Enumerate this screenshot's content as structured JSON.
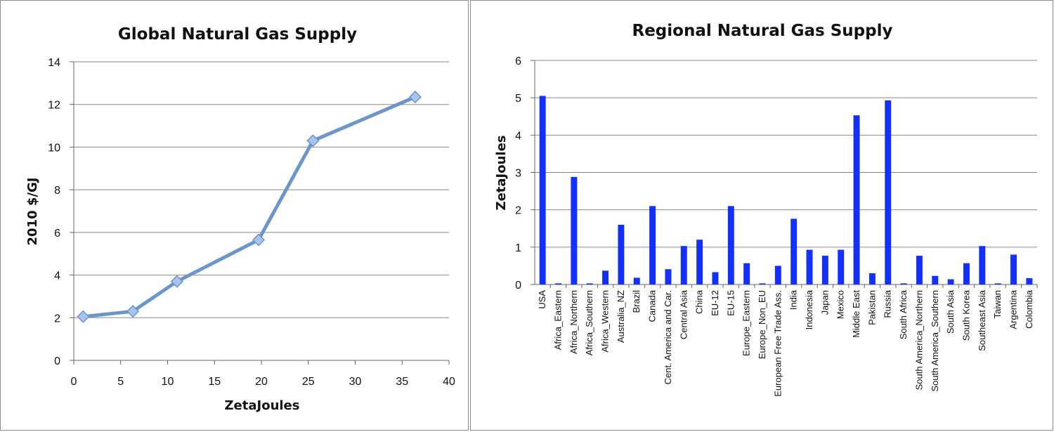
{
  "chart_data": [
    {
      "type": "line",
      "title": "Global Natural Gas Supply",
      "xlabel": "ZetaJoules",
      "ylabel": "2010 $/GJ",
      "xlim": [
        0,
        40
      ],
      "ylim": [
        0,
        14
      ],
      "xticks": [
        0,
        5,
        10,
        15,
        20,
        25,
        30,
        35,
        40
      ],
      "yticks": [
        0,
        2,
        4,
        6,
        8,
        10,
        12,
        14
      ],
      "grid": "horizontal",
      "legend": "none",
      "series": [
        {
          "x": [
            1,
            6.3,
            11,
            19.7,
            25.5,
            36.4
          ],
          "y": [
            2.05,
            2.3,
            3.7,
            5.65,
            10.3,
            12.35
          ],
          "color": "#6b96cb",
          "marker": "diamond"
        }
      ]
    },
    {
      "type": "bar",
      "title": "Regional Natural Gas Supply",
      "xlabel": "",
      "ylabel": "ZetaJoules",
      "ylim": [
        0,
        6
      ],
      "yticks": [
        0,
        1,
        2,
        3,
        4,
        5,
        6
      ],
      "grid": "horizontal",
      "legend": "none",
      "color": "#1230ff",
      "categories": [
        "USA",
        "Africa_Eastern",
        "Africa_Northern",
        "Africa_Southern",
        "Africa_Western",
        "Australia_NZ",
        "Brazil",
        "Canada",
        "Cent. America and Car.",
        "Central Asia",
        "China",
        "EU-12",
        "EU-15",
        "Europe_Eastern",
        "Europe_Non_EU",
        "European Free Trade Ass.",
        "India",
        "Indonesia",
        "Japan",
        "Mexico",
        "Middle East",
        "Pakistan",
        "Russia",
        "South Africa",
        "South America_Northern",
        "South America_Southern",
        "South Asia",
        "South Korea",
        "Southeast Asia",
        "Taiwan",
        "Argentina",
        "Colombia"
      ],
      "values": [
        5.05,
        0.03,
        2.88,
        0.03,
        0.37,
        1.6,
        0.18,
        2.1,
        0.41,
        1.03,
        1.2,
        0.33,
        2.1,
        0.57,
        0.03,
        0.5,
        1.76,
        0.93,
        0.77,
        0.93,
        4.53,
        0.3,
        4.93,
        0.03,
        0.77,
        0.23,
        0.14,
        0.57,
        1.03,
        0.03,
        0.8,
        0.17
      ]
    }
  ]
}
